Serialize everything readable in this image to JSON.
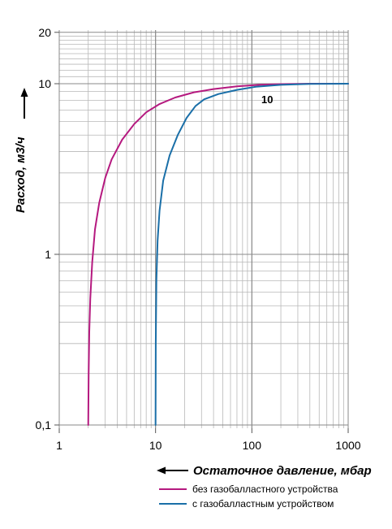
{
  "chart_data": {
    "type": "line",
    "xscale": "log",
    "yscale": "log",
    "xlim": [
      1,
      1000
    ],
    "ylim": [
      0.1,
      20
    ],
    "xlabel": "Остаточное давление, мбар",
    "ylabel": "Расход, м3/ч",
    "x_ticks": [
      "1",
      "10",
      "100",
      "1000"
    ],
    "y_ticks": [
      "0,1",
      "1",
      "10",
      "20"
    ],
    "annotation": "10",
    "grid": true,
    "legend_position": "bottom",
    "series": [
      {
        "name": "без газобалластного устройства",
        "color": "#b5197f",
        "points": [
          [
            2.0,
            0.1
          ],
          [
            2.02,
            0.2
          ],
          [
            2.05,
            0.35
          ],
          [
            2.1,
            0.55
          ],
          [
            2.2,
            0.9
          ],
          [
            2.35,
            1.4
          ],
          [
            2.6,
            2.0
          ],
          [
            3.0,
            2.8
          ],
          [
            3.5,
            3.6
          ],
          [
            4.5,
            4.7
          ],
          [
            6,
            5.8
          ],
          [
            8,
            6.8
          ],
          [
            11,
            7.6
          ],
          [
            16,
            8.3
          ],
          [
            25,
            8.9
          ],
          [
            40,
            9.3
          ],
          [
            70,
            9.65
          ],
          [
            120,
            9.85
          ],
          [
            200,
            9.95
          ],
          [
            400,
            10.0
          ],
          [
            1000,
            10.0
          ]
        ]
      },
      {
        "name": "с газобалластным устройством",
        "color": "#1a6fa8",
        "points": [
          [
            10.0,
            0.1
          ],
          [
            10.05,
            0.3
          ],
          [
            10.2,
            0.7
          ],
          [
            10.5,
            1.2
          ],
          [
            11,
            1.8
          ],
          [
            12,
            2.7
          ],
          [
            14,
            3.8
          ],
          [
            17,
            5.0
          ],
          [
            21,
            6.3
          ],
          [
            26,
            7.4
          ],
          [
            32,
            8.1
          ],
          [
            45,
            8.7
          ],
          [
            70,
            9.2
          ],
          [
            110,
            9.6
          ],
          [
            200,
            9.85
          ],
          [
            400,
            9.97
          ],
          [
            1000,
            10.0
          ]
        ]
      }
    ]
  }
}
